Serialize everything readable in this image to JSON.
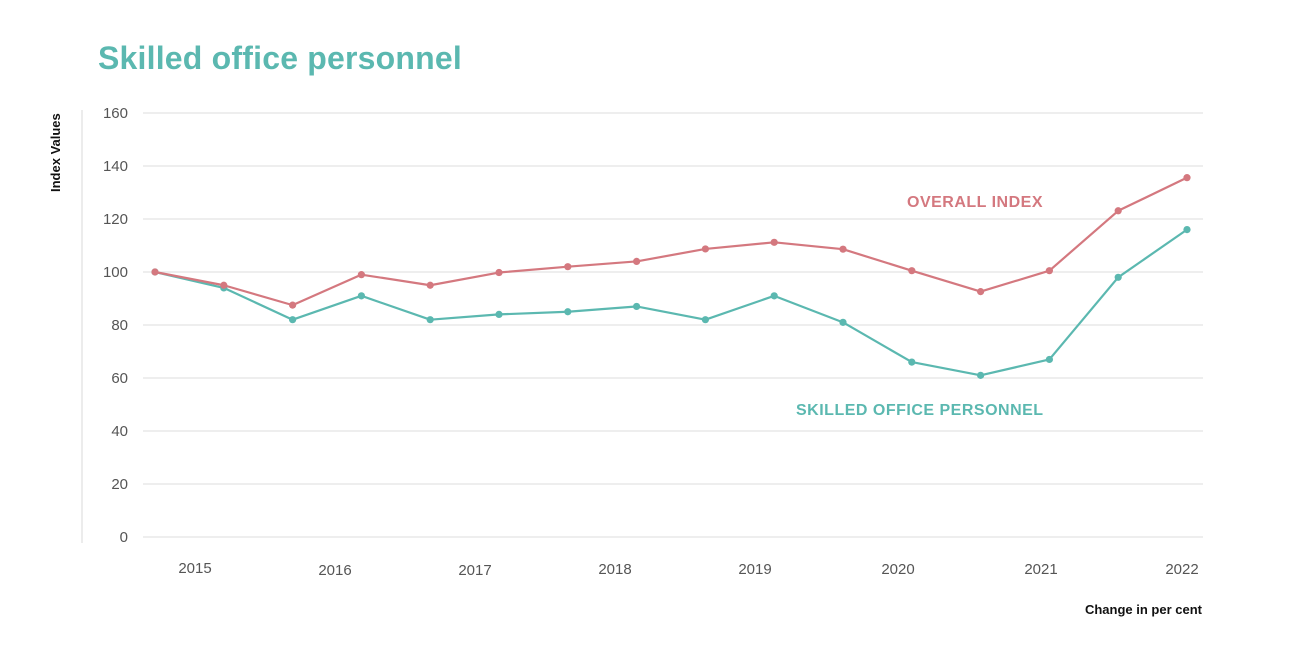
{
  "chart_data": {
    "type": "line",
    "title": "Skilled office personnel",
    "ylabel": "Index Values",
    "xlabel": "Change in per cent",
    "ylim": [
      0,
      160
    ],
    "yticks": [
      0,
      20,
      40,
      60,
      80,
      100,
      120,
      140,
      160
    ],
    "ytick_labels": [
      "0",
      "20",
      "40",
      "60",
      "80",
      "100",
      "120",
      "140",
      "160"
    ],
    "xtick_labels": [
      "2015",
      "2016",
      "2017",
      "2018",
      "2019",
      "2020",
      "2021",
      "2022"
    ],
    "grid": true,
    "series": [
      {
        "name": "OVERALL INDEX",
        "color": "#d4787f",
        "values": [
          100,
          95,
          87.5,
          99,
          95,
          99.8,
          102,
          104,
          108.7,
          111.2,
          108.6,
          100.5,
          92.6,
          100.5,
          123.1,
          135.6
        ]
      },
      {
        "name": "SKILLED OFFICE PERSONNEL",
        "color": "#5bb8b0",
        "values": [
          100,
          94,
          82,
          91,
          82,
          84,
          85,
          87,
          82,
          91,
          81,
          66,
          61,
          67,
          98,
          116
        ]
      }
    ]
  }
}
